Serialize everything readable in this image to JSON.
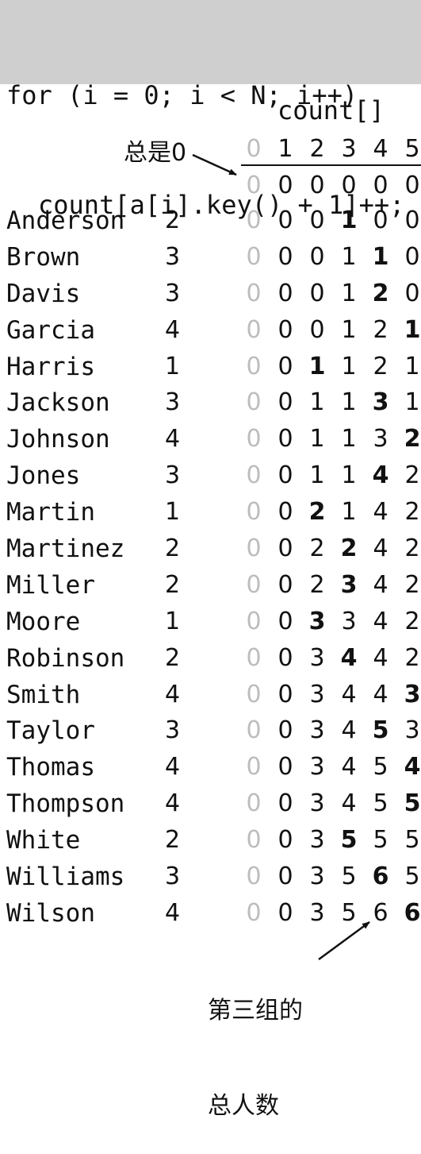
{
  "code": {
    "line1": "for (i = 0; i < N; i++)",
    "line2": "count[a[i].key() + 1]++;"
  },
  "count_label": "count[]",
  "note_zero": "总是0",
  "note_total_line1": "第三组的",
  "note_total_line2": "总人数",
  "indices": [
    "0",
    "1",
    "2",
    "3",
    "4",
    "5"
  ],
  "initial": [
    "0",
    "0",
    "0",
    "0",
    "0",
    "0"
  ],
  "rows": [
    {
      "name": "Anderson",
      "key": "2",
      "counts": [
        "0",
        "0",
        "0",
        "1",
        "0",
        "0"
      ],
      "updated": 3
    },
    {
      "name": "Brown",
      "key": "3",
      "counts": [
        "0",
        "0",
        "0",
        "1",
        "1",
        "0"
      ],
      "updated": 4
    },
    {
      "name": "Davis",
      "key": "3",
      "counts": [
        "0",
        "0",
        "0",
        "1",
        "2",
        "0"
      ],
      "updated": 4
    },
    {
      "name": "Garcia",
      "key": "4",
      "counts": [
        "0",
        "0",
        "0",
        "1",
        "2",
        "1"
      ],
      "updated": 5
    },
    {
      "name": "Harris",
      "key": "1",
      "counts": [
        "0",
        "0",
        "1",
        "1",
        "2",
        "1"
      ],
      "updated": 2
    },
    {
      "name": "Jackson",
      "key": "3",
      "counts": [
        "0",
        "0",
        "1",
        "1",
        "3",
        "1"
      ],
      "updated": 4
    },
    {
      "name": "Johnson",
      "key": "4",
      "counts": [
        "0",
        "0",
        "1",
        "1",
        "3",
        "2"
      ],
      "updated": 5
    },
    {
      "name": "Jones",
      "key": "3",
      "counts": [
        "0",
        "0",
        "1",
        "1",
        "4",
        "2"
      ],
      "updated": 4
    },
    {
      "name": "Martin",
      "key": "1",
      "counts": [
        "0",
        "0",
        "2",
        "1",
        "4",
        "2"
      ],
      "updated": 2
    },
    {
      "name": "Martinez",
      "key": "2",
      "counts": [
        "0",
        "0",
        "2",
        "2",
        "4",
        "2"
      ],
      "updated": 3
    },
    {
      "name": "Miller",
      "key": "2",
      "counts": [
        "0",
        "0",
        "2",
        "3",
        "4",
        "2"
      ],
      "updated": 3
    },
    {
      "name": "Moore",
      "key": "1",
      "counts": [
        "0",
        "0",
        "3",
        "3",
        "4",
        "2"
      ],
      "updated": 2
    },
    {
      "name": "Robinson",
      "key": "2",
      "counts": [
        "0",
        "0",
        "3",
        "4",
        "4",
        "2"
      ],
      "updated": 3
    },
    {
      "name": "Smith",
      "key": "4",
      "counts": [
        "0",
        "0",
        "3",
        "4",
        "4",
        "3"
      ],
      "updated": 5
    },
    {
      "name": "Taylor",
      "key": "3",
      "counts": [
        "0",
        "0",
        "3",
        "4",
        "5",
        "3"
      ],
      "updated": 4
    },
    {
      "name": "Thomas",
      "key": "4",
      "counts": [
        "0",
        "0",
        "3",
        "4",
        "5",
        "4"
      ],
      "updated": 5
    },
    {
      "name": "Thompson",
      "key": "4",
      "counts": [
        "0",
        "0",
        "3",
        "4",
        "5",
        "5"
      ],
      "updated": 5
    },
    {
      "name": "White",
      "key": "2",
      "counts": [
        "0",
        "0",
        "3",
        "5",
        "5",
        "5"
      ],
      "updated": 3
    },
    {
      "name": "Williams",
      "key": "3",
      "counts": [
        "0",
        "0",
        "3",
        "5",
        "6",
        "5"
      ],
      "updated": 4
    },
    {
      "name": "Wilson",
      "key": "4",
      "counts": [
        "0",
        "0",
        "3",
        "5",
        "6",
        "6"
      ],
      "updated": 5
    }
  ]
}
